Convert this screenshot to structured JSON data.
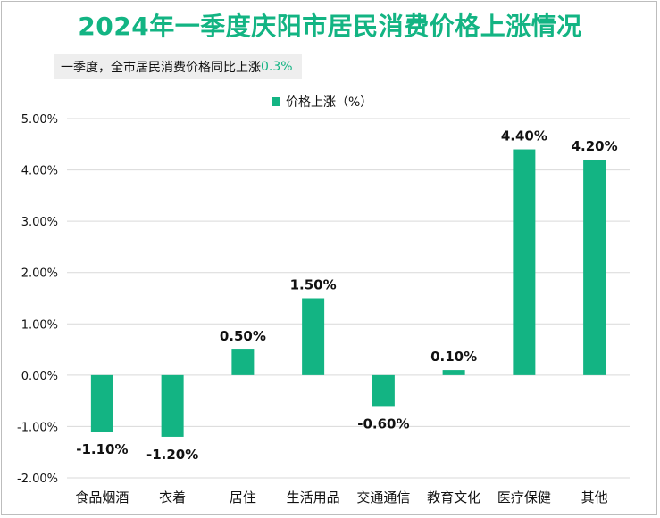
{
  "title": "2024年一季度庆阳市居民消费价格上涨情况",
  "subtitle": {
    "text": "一季度，全市居民消费价格同比上涨",
    "highlight": "0.3%"
  },
  "colors": {
    "bar": "#13b483",
    "title": "#13b483",
    "grid": "#d9d9d9"
  },
  "chart_data": {
    "type": "bar",
    "categories": [
      "食品烟酒",
      "衣着",
      "居住",
      "生活用品",
      "交通通信",
      "教育文化",
      "医疗保健",
      "其他"
    ],
    "series": [
      {
        "name": "价格上涨（%）",
        "values": [
          -1.1,
          -1.2,
          0.5,
          1.5,
          -0.6,
          0.1,
          4.4,
          4.2
        ],
        "labels": [
          "-1.10%",
          "-1.20%",
          "0.50%",
          "1.50%",
          "-0.60%",
          "0.10%",
          "4.40%",
          "4.20%"
        ]
      }
    ],
    "ylim": [
      -2,
      5
    ],
    "yticks": [
      5,
      4,
      3,
      2,
      1,
      0,
      -1,
      -2
    ],
    "ytick_labels": [
      "5.00%",
      "4.00%",
      "3.00%",
      "2.00%",
      "1.00%",
      "0.00%",
      "-1.00%",
      "-2.00%"
    ],
    "grid": true,
    "legend_position": "top"
  }
}
